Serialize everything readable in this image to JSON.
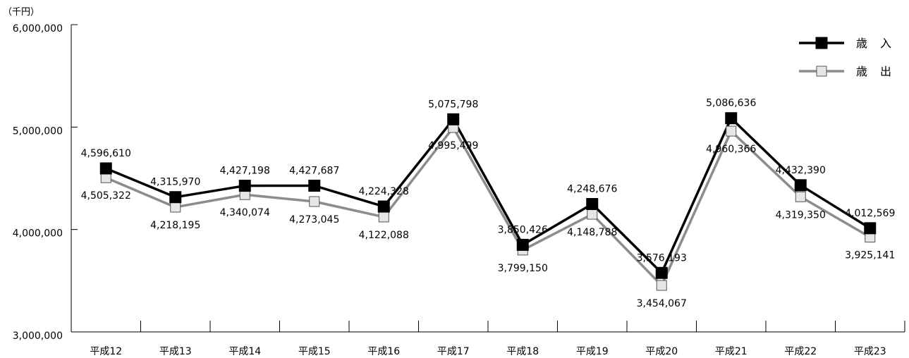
{
  "chart_data": {
    "type": "line",
    "unit_label": "（千円）",
    "categories": [
      "平成12",
      "平成13",
      "平成14",
      "平成15",
      "平成16",
      "平成17",
      "平成18",
      "平成19",
      "平成20",
      "平成21",
      "平成22",
      "平成23"
    ],
    "y_ticks": [
      3000000,
      4000000,
      5000000,
      6000000
    ],
    "y_tick_labels": [
      "3,000,000",
      "4,000,000",
      "5,000,000",
      "6,000,000"
    ],
    "ylim": [
      3000000,
      6000000
    ],
    "grid": false,
    "legend_position": "top-right",
    "series": [
      {
        "name": "歳入",
        "color": "#000000",
        "marker_fill": "#000000",
        "values": [
          4596610,
          4315970,
          4427198,
          4427687,
          4224328,
          5075798,
          3850426,
          4248676,
          3576193,
          5086636,
          4432390,
          4012569
        ],
        "labels": [
          "4,596,610",
          "4,315,970",
          "4,427,198",
          "4,427,687",
          "4,224,328",
          "5,075,798",
          "3,850,426",
          "4,248,676",
          "3,576,193",
          "5,086,636",
          "4,432,390",
          "4,012,569"
        ]
      },
      {
        "name": "歳出",
        "color": "#8c8c8c",
        "marker_fill": "#e6e6e6",
        "values": [
          4505322,
          4218195,
          4340074,
          4273045,
          4122088,
          4995499,
          3799150,
          4148788,
          3454067,
          4960366,
          4319350,
          3925141
        ],
        "labels": [
          "4,505,322",
          "4,218,195",
          "4,340,074",
          "4,273,045",
          "4,122,088",
          "4,995,499",
          "3,799,150",
          "4,148,788",
          "3,454,067",
          "4,960,366",
          "4,319,350",
          "3,925,141"
        ]
      }
    ]
  }
}
